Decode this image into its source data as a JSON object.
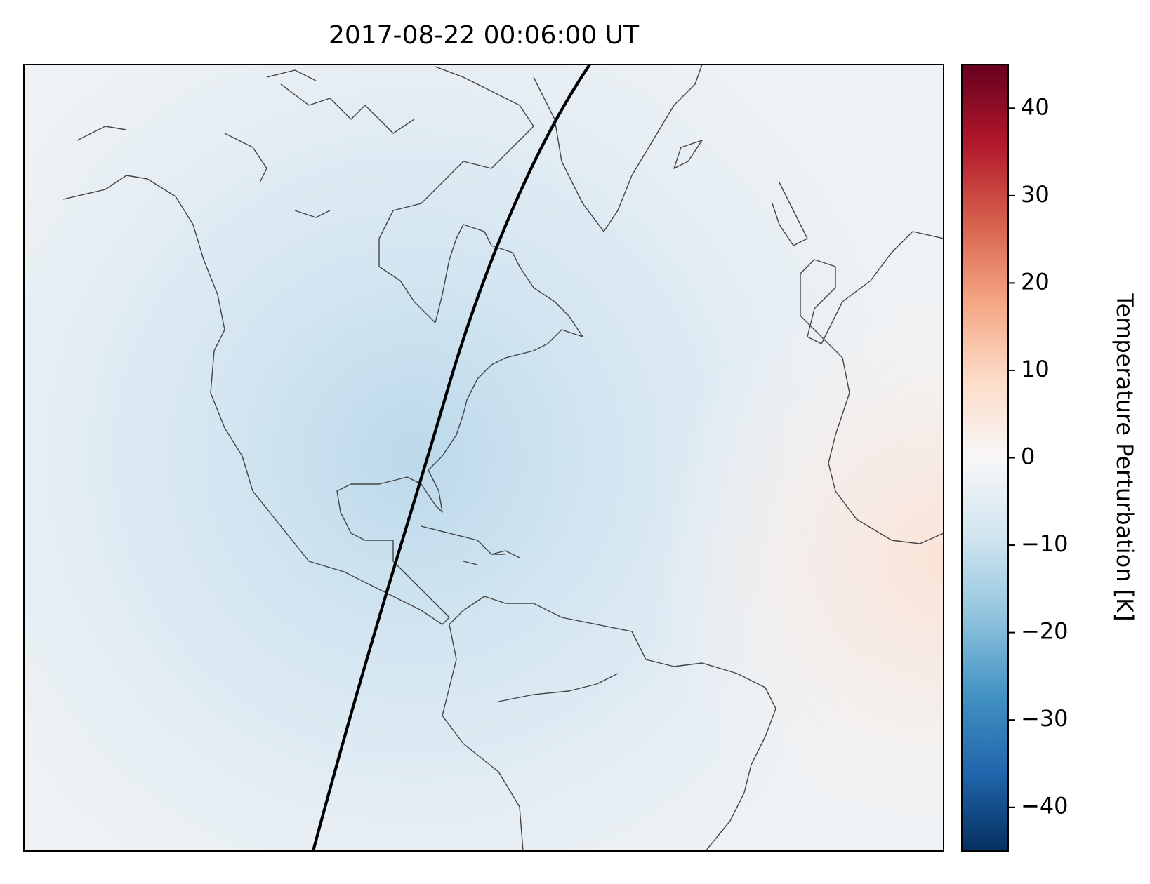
{
  "title": "2017-08-22 00:06:00 UT",
  "colorbar": {
    "label": "Temperature Perturbation [K]",
    "lim": [
      -45,
      45
    ],
    "ticks": [
      {
        "value": -40,
        "label": "−40"
      },
      {
        "value": -30,
        "label": "−30"
      },
      {
        "value": -20,
        "label": "−20"
      },
      {
        "value": -10,
        "label": "−10"
      },
      0,
      10,
      20,
      30,
      40
    ],
    "colormap": [
      "#053061",
      "#2166ac",
      "#4393c3",
      "#92c5de",
      "#d1e5f0",
      "#f7f7f7",
      "#fddbc7",
      "#f4a582",
      "#d6604d",
      "#b2182b",
      "#67001f"
    ]
  }
}
